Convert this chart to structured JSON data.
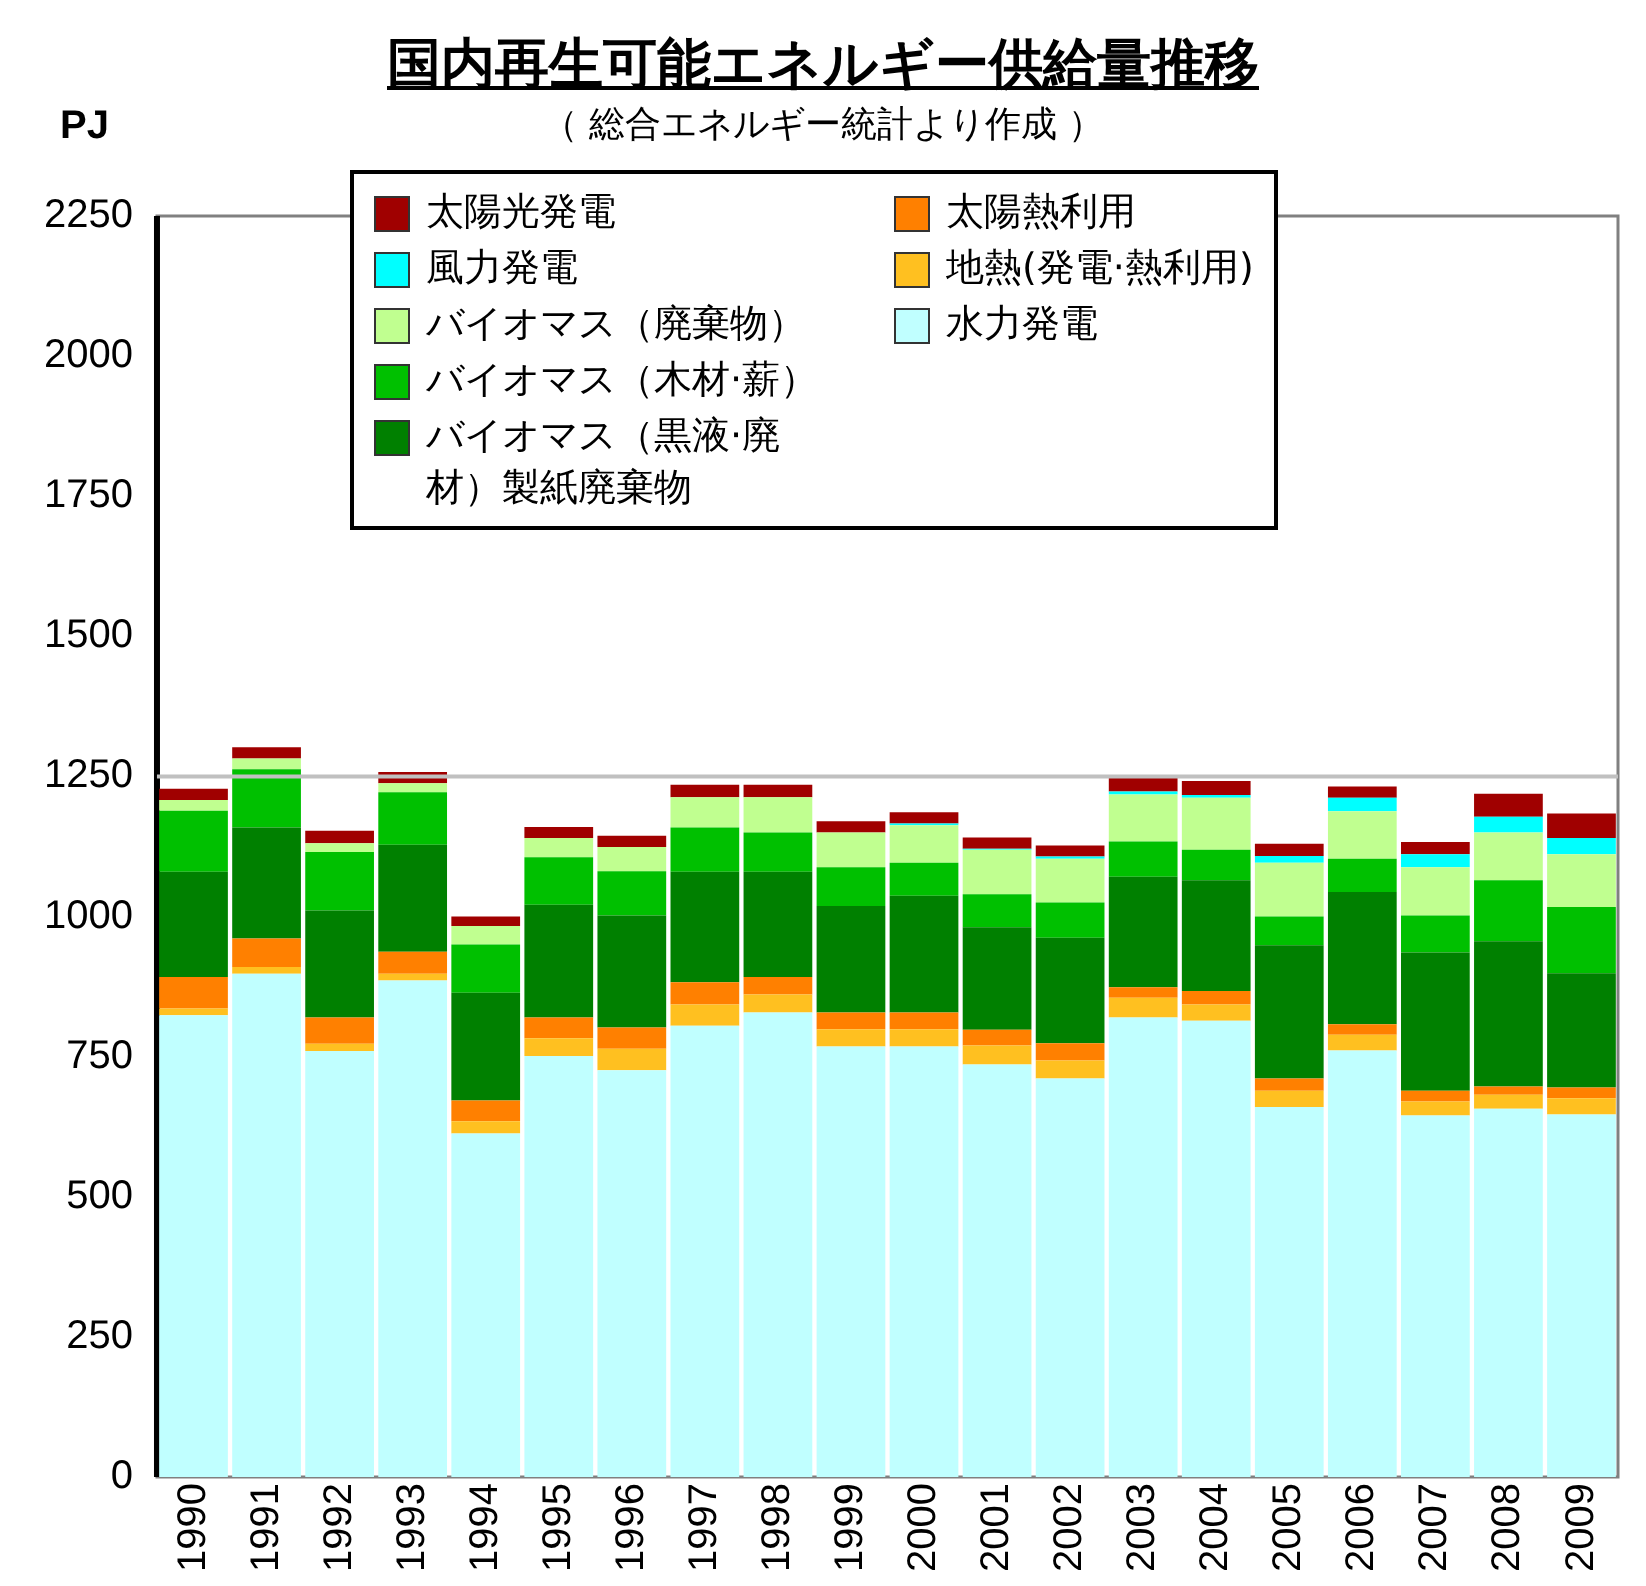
{
  "chart_data": {
    "type": "bar",
    "stacked": true,
    "title": "国内再生可能エネルギー供給量推移",
    "subtitle": "（ 総合エネルギー統計より作成 ）",
    "ylabel": "PJ",
    "categories": [
      "1990",
      "1991",
      "1992",
      "1993",
      "1994",
      "1995",
      "1996",
      "1997",
      "1998",
      "1999",
      "2000",
      "2001",
      "2002",
      "2003",
      "2004",
      "2005",
      "2006",
      "2007",
      "2008",
      "2009"
    ],
    "ylim": [
      0,
      2250
    ],
    "yticks": [
      0,
      250,
      500,
      750,
      1000,
      1250,
      1500,
      1750,
      2000,
      2250
    ],
    "grid": false,
    "legend": "top",
    "ref_lines": [
      {
        "axis": "y",
        "value": 1250,
        "color": "#c0c0c0"
      }
    ],
    "series": [
      {
        "name": "水力発電",
        "color": "#c0ffff",
        "values": [
          824,
          898,
          760,
          886,
          613,
          751,
          726,
          805,
          829,
          768,
          768,
          736,
          711,
          820,
          814,
          660,
          761,
          645,
          657,
          647
        ]
      },
      {
        "name": "地熱(発電·熱利用)",
        "color": "#ffc020",
        "values": [
          12,
          12,
          13,
          12,
          22,
          32,
          38,
          38,
          32,
          31,
          31,
          34,
          32,
          35,
          29,
          29,
          28,
          25,
          25,
          29
        ]
      },
      {
        "name": "太陽熱利用",
        "color": "#ff8000",
        "values": [
          56,
          51,
          47,
          39,
          37,
          37,
          38,
          40,
          31,
          30,
          30,
          28,
          31,
          19,
          24,
          22,
          19,
          19,
          15,
          19
        ]
      },
      {
        "name": "バイオマス（黒液·廃材）製紙廃棄物",
        "color": "#008000",
        "values": [
          188,
          198,
          191,
          191,
          192,
          201,
          200,
          197,
          188,
          190,
          208,
          183,
          188,
          197,
          198,
          238,
          236,
          247,
          259,
          204
        ]
      },
      {
        "name": "バイオマス（木材·薪）",
        "color": "#00c000",
        "values": [
          109,
          104,
          104,
          94,
          86,
          85,
          79,
          79,
          70,
          69,
          59,
          59,
          63,
          63,
          54,
          51,
          59,
          66,
          109,
          118
        ]
      },
      {
        "name": "バイオマス（廃棄物）",
        "color": "#c0ff90",
        "values": [
          19,
          19,
          16,
          16,
          33,
          34,
          43,
          54,
          63,
          62,
          67,
          79,
          78,
          84,
          93,
          96,
          85,
          86,
          85,
          94
        ]
      },
      {
        "name": "風力発電",
        "color": "#00ffff",
        "values": [
          0,
          0,
          0,
          0,
          0,
          0,
          0,
          0,
          0,
          0,
          3,
          2,
          4,
          5,
          5,
          12,
          24,
          23,
          28,
          29
        ]
      },
      {
        "name": "太陽光発電",
        "color": "#a00000",
        "values": [
          20,
          20,
          22,
          20,
          17,
          20,
          20,
          22,
          22,
          20,
          20,
          20,
          20,
          25,
          25,
          22,
          20,
          22,
          41,
          44
        ]
      }
    ]
  }
}
